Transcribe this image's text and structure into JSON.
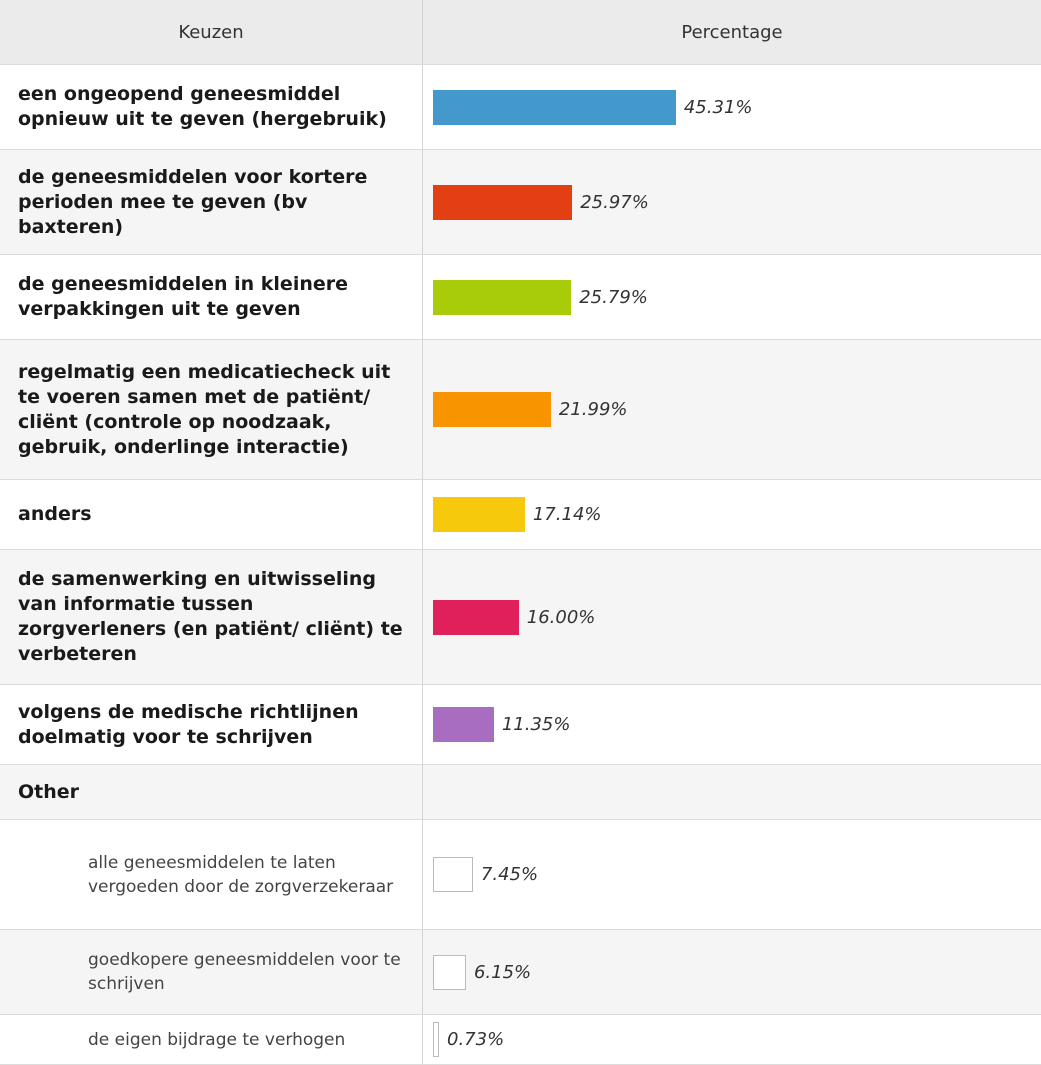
{
  "chart_data": {
    "type": "bar",
    "columns": [
      "Keuzen",
      "Percentage"
    ],
    "categories": [
      "een ongeopend geneesmiddel opnieuw uit te geven (hergebruik)",
      "de geneesmiddelen voor kortere perioden mee te geven (bv baxteren)",
      "de geneesmiddelen in kleinere verpakkingen uit te geven",
      "regelmatig een medicatiecheck uit te voeren samen met de patiënt/ cliënt (controle op noodzaak, gebruik, onderlinge interactie)",
      "anders",
      "de samenwerking en uitwisseling van informatie tussen zorgverleners (en patiënt/ cliënt) te verbeteren",
      "volgens de medische richtlijnen doelmatig voor te schrijven"
    ],
    "values": [
      45.31,
      25.97,
      25.79,
      21.99,
      17.14,
      16,
      11.35
    ],
    "value_labels": [
      "45.31%",
      "25.97%",
      "25.79%",
      "21.99%",
      "17.14%",
      "16.00%",
      "11.35%"
    ],
    "colors": [
      "#4499cc",
      "#e23f12",
      "#a8cc0a",
      "#f79400",
      "#f7c90c",
      "#e0205a",
      "#a86cc1"
    ],
    "other_label": "Other",
    "other_categories": [
      "alle geneesmiddelen te laten vergoeden door de zorgverzekeraar",
      "goedkopere geneesmiddelen voor te schrijven",
      "de eigen bijdrage te verhogen"
    ],
    "other_values": [
      7.45,
      6.15,
      0.73
    ],
    "other_value_labels": [
      "7.45%",
      "6.15%",
      "0.73%"
    ],
    "other_color": "#ffffff"
  }
}
